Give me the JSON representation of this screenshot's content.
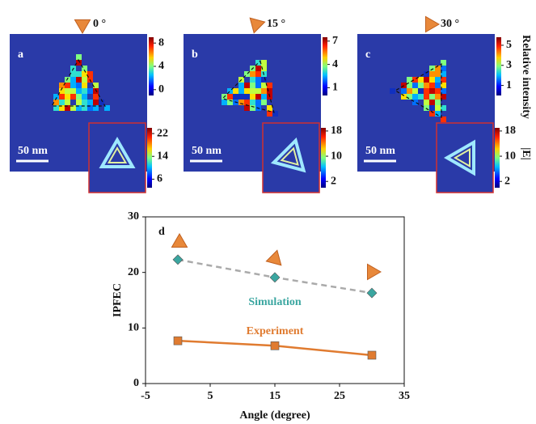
{
  "panels": [
    {
      "label": "a",
      "angle": "0 °",
      "scale_bar": "50 nm",
      "colorbar_ticks": [
        8,
        4,
        0
      ],
      "colorbar_lim": [
        -1,
        9
      ],
      "inset_colorbar_ticks": [
        22,
        14,
        6
      ],
      "inset_colorbar_lim": [
        3,
        24
      ]
    },
    {
      "label": "b",
      "angle": "15 °",
      "scale_bar": "50 nm",
      "colorbar_ticks": [
        7,
        4,
        1
      ],
      "colorbar_lim": [
        0,
        7.5
      ],
      "inset_colorbar_ticks": [
        18,
        10,
        2
      ],
      "inset_colorbar_lim": [
        0,
        19
      ]
    },
    {
      "label": "c",
      "angle": "30 °",
      "scale_bar": "50 nm",
      "colorbar_ticks": [
        5,
        3,
        1
      ],
      "colorbar_lim": [
        0,
        5.8
      ],
      "inset_colorbar_ticks": [
        18,
        10,
        2
      ],
      "inset_colorbar_lim": [
        0,
        19
      ]
    }
  ],
  "colorbar_title": "Relative intensity",
  "inset_colorbar_title": "|E|",
  "chart_data": {
    "type": "line",
    "panel_label": "d",
    "x_label": "Angle (degree)",
    "y_label": "IPFEC",
    "x": [
      0,
      15,
      30
    ],
    "series": [
      {
        "name": "Simulation",
        "color": "#3aa6a0",
        "line_color": "#aaaaaa",
        "dashed": true,
        "marker": "diamond",
        "values": [
          22.3,
          19.1,
          16.3
        ]
      },
      {
        "name": "Experiment",
        "color": "#e07b30",
        "line_color": "#e07b30",
        "dashed": false,
        "marker": "square",
        "values": [
          7.7,
          6.8,
          5.1
        ]
      }
    ],
    "xlim": [
      -5,
      35
    ],
    "xticks": [
      -5,
      5,
      15,
      25,
      35
    ],
    "ylim": [
      0,
      30
    ],
    "yticks": [
      0,
      10,
      20,
      30
    ]
  }
}
